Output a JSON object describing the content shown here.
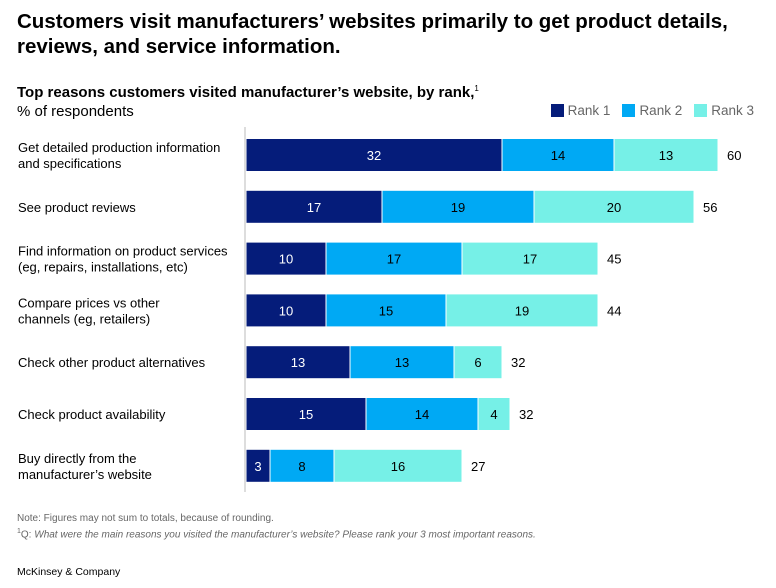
{
  "title": "Customers visit manufacturers’ websites primarily to get product details, reviews, and service information.",
  "chart_data": {
    "type": "bar",
    "orientation": "horizontal-stacked",
    "title": "Top reasons customers visited manufacturer’s website, by rank,",
    "title_footnote": "1",
    "unit_label": "% of respondents",
    "legend_position": "top-right",
    "categories": [
      [
        "Get detailed production information",
        "and specifications"
      ],
      [
        "See product reviews"
      ],
      [
        "Find information on product services",
        "(eg, repairs, installations, etc)"
      ],
      [
        "Compare prices vs other",
        "channels (eg, retailers)"
      ],
      [
        "Check other product alternatives"
      ],
      [
        "Check product availability"
      ],
      [
        "Buy directly from the",
        "manufacturer’s website"
      ]
    ],
    "series": [
      {
        "name": "Rank 1",
        "color": "#051c7a",
        "label_color": "#ffffff",
        "values": [
          32,
          17,
          10,
          10,
          13,
          15,
          3
        ]
      },
      {
        "name": "Rank 2",
        "color": "#00a9f4",
        "label_color": "#000000",
        "values": [
          14,
          19,
          17,
          15,
          13,
          14,
          8
        ]
      },
      {
        "name": "Rank 3",
        "color": "#76f0e7",
        "label_color": "#000000",
        "values": [
          13,
          20,
          17,
          19,
          6,
          4,
          16
        ]
      }
    ],
    "totals": [
      60,
      56,
      45,
      44,
      32,
      32,
      27
    ],
    "grid": false
  },
  "notes": {
    "note": "Note: Figures may not sum to totals, because of rounding.",
    "footnote_mark": "1",
    "footnote_prefix": "Q: ",
    "footnote_text": "What were the main reasons you visited the manufacturer’s website? Please rank your 3 most important reasons."
  },
  "brand": "McKinsey & Company"
}
